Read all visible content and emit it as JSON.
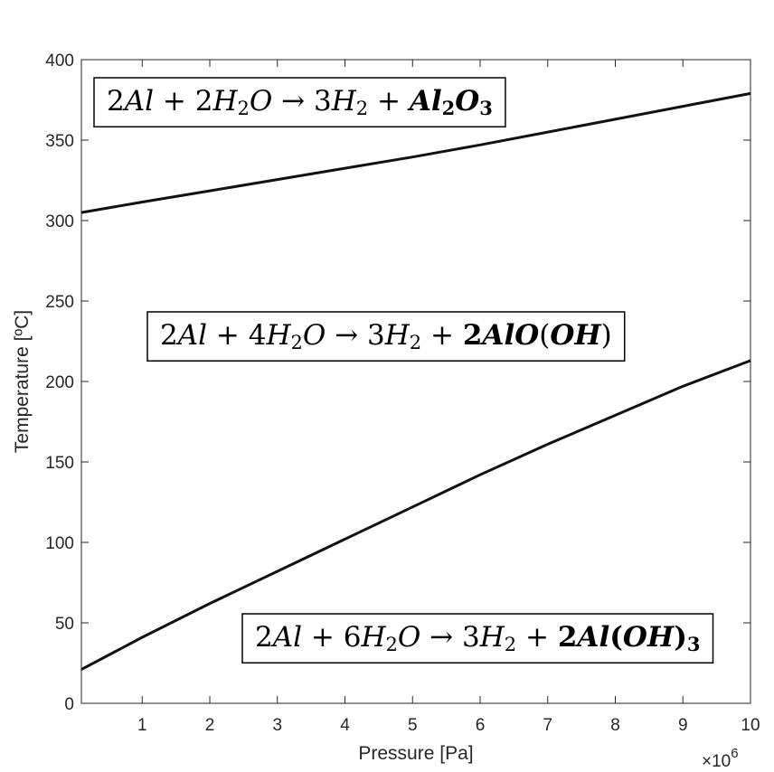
{
  "chart_data": {
    "type": "line",
    "xlabel": "Pressure [Pa]",
    "ylabel": "Temperature [ºC]",
    "x_exponent_label": "×10",
    "x_exponent_power": "6",
    "xlim": [
      0.1,
      10
    ],
    "ylim": [
      0,
      400
    ],
    "xticks": [
      1,
      2,
      3,
      4,
      5,
      6,
      7,
      8,
      9,
      10
    ],
    "yticks": [
      0,
      50,
      100,
      150,
      200,
      250,
      300,
      350,
      400
    ],
    "x_multiplier": 1000000,
    "grid": false,
    "series": [
      {
        "x": [
          0.1,
          1,
          2,
          3,
          4,
          5,
          6,
          7,
          8,
          9,
          10
        ],
        "y": [
          305,
          311.5,
          318.5,
          325.5,
          332.5,
          339.5,
          347,
          355,
          363,
          371,
          379
        ]
      },
      {
        "x": [
          0.1,
          1,
          2,
          3,
          4,
          5,
          6,
          7,
          8,
          9,
          10
        ],
        "y": [
          21,
          41,
          62,
          82,
          102,
          122,
          142,
          161,
          179,
          197,
          213
        ]
      }
    ],
    "annotations": [
      {
        "id": "al2o3",
        "text": "2Al + 2H2O → 3H2 + Al2O3",
        "parts": [
          {
            "t": "2",
            "s": "n"
          },
          {
            "t": "Al",
            "s": "it"
          },
          {
            "t": " + 2",
            "s": "n"
          },
          {
            "t": "H",
            "s": "it"
          },
          {
            "t": "2",
            "s": "sub"
          },
          {
            "t": "O",
            "s": "it"
          },
          {
            "t": " → 3",
            "s": "n"
          },
          {
            "t": "H",
            "s": "it"
          },
          {
            "t": "2",
            "s": "sub"
          },
          {
            "t": " + ",
            "s": "n"
          },
          {
            "t": "Al",
            "s": "bi"
          },
          {
            "t": "2",
            "s": "subb"
          },
          {
            "t": "O",
            "s": "bi"
          },
          {
            "t": "3",
            "s": "subb"
          }
        ]
      },
      {
        "id": "aloooh",
        "text": "2Al + 4H2O → 3H2 + 2AlO(OH)",
        "parts": [
          {
            "t": "2",
            "s": "n"
          },
          {
            "t": "Al",
            "s": "it"
          },
          {
            "t": " + 4",
            "s": "n"
          },
          {
            "t": "H",
            "s": "it"
          },
          {
            "t": "2",
            "s": "sub"
          },
          {
            "t": "O",
            "s": "it"
          },
          {
            "t": " → 3",
            "s": "n"
          },
          {
            "t": "H",
            "s": "it"
          },
          {
            "t": "2",
            "s": "sub"
          },
          {
            "t": " + ",
            "s": "n"
          },
          {
            "t": "2",
            "s": "bd"
          },
          {
            "t": "AlO",
            "s": "bi"
          },
          {
            "t": "(",
            "s": "n"
          },
          {
            "t": "OH",
            "s": "bi"
          },
          {
            "t": ")",
            "s": "n"
          }
        ]
      },
      {
        "id": "aloh3",
        "text": "2Al + 6H2O → 3H2 + 2Al(OH)3",
        "parts": [
          {
            "t": "2",
            "s": "n"
          },
          {
            "t": "Al",
            "s": "it"
          },
          {
            "t": " + 6",
            "s": "n"
          },
          {
            "t": "H",
            "s": "it"
          },
          {
            "t": "2",
            "s": "sub"
          },
          {
            "t": "O",
            "s": "it"
          },
          {
            "t": " → 3",
            "s": "n"
          },
          {
            "t": "H",
            "s": "it"
          },
          {
            "t": "2",
            "s": "sub"
          },
          {
            "t": " + ",
            "s": "n"
          },
          {
            "t": "2",
            "s": "bd"
          },
          {
            "t": "Al",
            "s": "bi"
          },
          {
            "t": "(",
            "s": "bd"
          },
          {
            "t": "OH",
            "s": "bi"
          },
          {
            "t": ")",
            "s": "bd"
          },
          {
            "t": "3",
            "s": "subb"
          }
        ]
      }
    ]
  }
}
